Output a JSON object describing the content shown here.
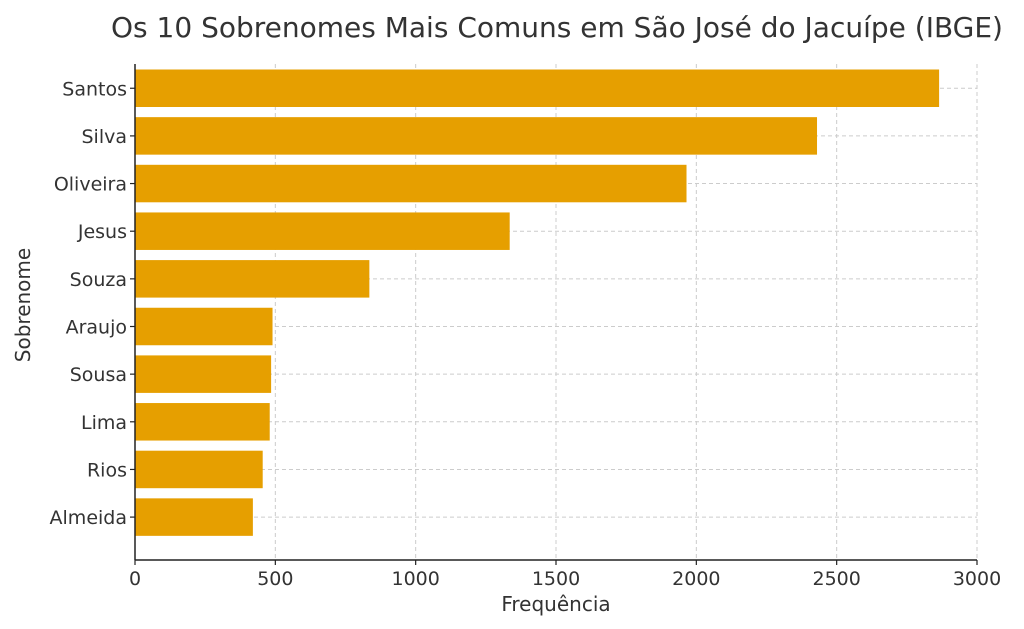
{
  "chart_data": {
    "type": "bar",
    "orientation": "horizontal",
    "title": "Os 10 Sobrenomes Mais Comuns em São José do Jacuípe (IBGE)",
    "xlabel": "Frequência",
    "ylabel": "Sobrenome",
    "categories": [
      "Santos",
      "Silva",
      "Oliveira",
      "Jesus",
      "Souza",
      "Araujo",
      "Sousa",
      "Lima",
      "Rios",
      "Almeida"
    ],
    "values": [
      2865,
      2430,
      1965,
      1335,
      835,
      490,
      485,
      480,
      455,
      420
    ],
    "xlim": [
      0,
      3000
    ],
    "xticks": [
      0,
      500,
      1000,
      1500,
      2000,
      2500,
      3000
    ],
    "grid": true,
    "bar_color": "#E69F00"
  }
}
